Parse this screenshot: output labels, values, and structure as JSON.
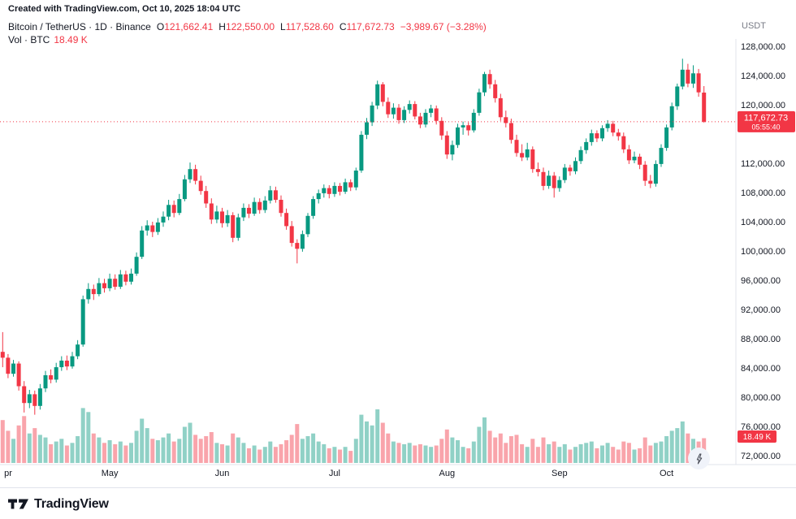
{
  "annotation": "Created with TradingView.com, Oct 10, 2025 18:04 UTC",
  "legend": {
    "title": "Bitcoin / TetherUS · 1D · Binance",
    "open_label": "O",
    "open": "121,662.41",
    "high_label": "H",
    "high": "122,550.00",
    "low_label": "L",
    "low": "117,528.60",
    "close_label": "C",
    "close": "117,672.73",
    "change": "−3,989.67 (−3.28%)",
    "vol_label": "Vol · BTC",
    "vol_value": "18.49 K"
  },
  "price_scale": {
    "currency": "USDT",
    "ticks": [
      {
        "value": 128000,
        "label": "128,000.00"
      },
      {
        "value": 124000,
        "label": "124,000.00"
      },
      {
        "value": 120000,
        "label": "120,000.00"
      },
      {
        "value": 116000,
        "label": "116,000.00"
      },
      {
        "value": 112000,
        "label": "112,000.00"
      },
      {
        "value": 108000,
        "label": "108,000.00"
      },
      {
        "value": 104000,
        "label": "104,000.00"
      },
      {
        "value": 100000,
        "label": "100,000.00"
      },
      {
        "value": 96000,
        "label": "96,000.00"
      },
      {
        "value": 92000,
        "label": "92,000.00"
      },
      {
        "value": 88000,
        "label": "88,000.00"
      },
      {
        "value": 84000,
        "label": "84,000.00"
      },
      {
        "value": 80000,
        "label": "80,000.00"
      },
      {
        "value": 76000,
        "label": "76,000.00"
      },
      {
        "value": 72000,
        "label": "72,000.00"
      }
    ]
  },
  "last_price": {
    "value": 117672.73,
    "label": "117,672.73",
    "countdown": "05:55:40"
  },
  "volume_badge": {
    "label": "18.49 K"
  },
  "colors": {
    "up": "#089981",
    "down": "#f23645",
    "volume_up": "rgba(8,153,129,0.45)",
    "volume_down": "rgba(242,54,69,0.45)",
    "axis_text": "#131722",
    "muted": "#787b86",
    "border": "#e0e3eb",
    "badge": "#f23645"
  },
  "footer": {
    "brand": "TradingView"
  },
  "chart_data": {
    "type": "candlestick",
    "title": "Bitcoin / TetherUS, 1D, Binance",
    "columns": [
      "open",
      "high",
      "low",
      "close",
      "volume_k_btc"
    ],
    "y_axis": {
      "min": 70500,
      "max": 129500,
      "tick_step": 4000,
      "grid": false
    },
    "volume_axis": {
      "unit": "K BTC",
      "last": 18.49
    },
    "x_axis": {
      "months": [
        {
          "label": "pr",
          "index": 0
        },
        {
          "label": "May",
          "index": 20
        },
        {
          "label": "Jun",
          "index": 41
        },
        {
          "label": "Jul",
          "index": 62
        },
        {
          "label": "Aug",
          "index": 83
        },
        {
          "label": "Sep",
          "index": 104
        },
        {
          "label": "Oct",
          "index": 124
        }
      ]
    },
    "candles": [
      [
        86200,
        88900,
        84100,
        85400,
        32
      ],
      [
        85400,
        85900,
        82600,
        83200,
        24
      ],
      [
        83200,
        85100,
        82800,
        84600,
        18
      ],
      [
        84600,
        84900,
        80900,
        81500,
        28
      ],
      [
        81500,
        82200,
        77900,
        79200,
        35
      ],
      [
        79200,
        81000,
        78500,
        80400,
        22
      ],
      [
        80400,
        80900,
        77600,
        78800,
        26
      ],
      [
        78800,
        81800,
        78300,
        81200,
        21
      ],
      [
        81200,
        83600,
        80700,
        83000,
        19
      ],
      [
        83000,
        83800,
        81900,
        82400,
        14
      ],
      [
        82400,
        84700,
        82000,
        84100,
        16
      ],
      [
        84100,
        85600,
        83600,
        85000,
        18
      ],
      [
        85000,
        85700,
        83700,
        84200,
        13
      ],
      [
        84200,
        86200,
        83900,
        85600,
        15
      ],
      [
        85600,
        87800,
        85200,
        87200,
        20
      ],
      [
        87200,
        93900,
        86900,
        93400,
        41
      ],
      [
        93400,
        95600,
        92800,
        94800,
        38
      ],
      [
        94800,
        95400,
        93300,
        94100,
        22
      ],
      [
        94100,
        96300,
        93800,
        95600,
        19
      ],
      [
        95600,
        96200,
        94300,
        94900,
        15
      ],
      [
        94900,
        96900,
        94500,
        96200,
        17
      ],
      [
        96200,
        96800,
        94700,
        95100,
        14
      ],
      [
        95100,
        97400,
        94800,
        96800,
        16
      ],
      [
        96800,
        97300,
        95300,
        95800,
        13
      ],
      [
        95800,
        97600,
        95400,
        96900,
        15
      ],
      [
        96900,
        99800,
        96600,
        99200,
        24
      ],
      [
        99200,
        103400,
        98900,
        102800,
        33
      ],
      [
        102800,
        104200,
        102100,
        103500,
        26
      ],
      [
        103500,
        104000,
        101900,
        102600,
        18
      ],
      [
        102600,
        104500,
        102200,
        103900,
        17
      ],
      [
        103900,
        105400,
        103300,
        104700,
        19
      ],
      [
        104700,
        107000,
        104200,
        106300,
        22
      ],
      [
        106300,
        106900,
        104600,
        105200,
        16
      ],
      [
        105200,
        107800,
        104900,
        107100,
        18
      ],
      [
        107100,
        110400,
        106800,
        109800,
        27
      ],
      [
        109800,
        112100,
        109300,
        111200,
        30
      ],
      [
        111200,
        111800,
        109100,
        109600,
        21
      ],
      [
        109600,
        110300,
        107700,
        108200,
        18
      ],
      [
        108200,
        108900,
        105900,
        106500,
        20
      ],
      [
        106500,
        107200,
        103700,
        104300,
        23
      ],
      [
        104300,
        106200,
        103800,
        105400,
        15
      ],
      [
        105400,
        105900,
        103200,
        103800,
        14
      ],
      [
        103800,
        105600,
        103300,
        104900,
        13
      ],
      [
        104900,
        105300,
        101200,
        101800,
        22
      ],
      [
        101800,
        105100,
        101400,
        104600,
        19
      ],
      [
        104600,
        106500,
        104100,
        105900,
        15
      ],
      [
        105900,
        106400,
        104500,
        105100,
        11
      ],
      [
        105100,
        107300,
        104800,
        106700,
        13
      ],
      [
        106700,
        107200,
        105100,
        105600,
        10
      ],
      [
        105600,
        107500,
        105200,
        106900,
        12
      ],
      [
        106900,
        108900,
        106500,
        108300,
        16
      ],
      [
        108300,
        108800,
        106600,
        107000,
        12
      ],
      [
        107000,
        107600,
        104700,
        105200,
        14
      ],
      [
        105200,
        105800,
        102900,
        103400,
        17
      ],
      [
        103400,
        104100,
        100600,
        101100,
        21
      ],
      [
        101100,
        101600,
        98300,
        100300,
        29
      ],
      [
        100300,
        102800,
        99900,
        102300,
        18
      ],
      [
        102300,
        105200,
        101900,
        104800,
        20
      ],
      [
        104800,
        107500,
        104400,
        107100,
        22
      ],
      [
        107100,
        108400,
        106500,
        107900,
        16
      ],
      [
        107900,
        109100,
        107300,
        108600,
        14
      ],
      [
        108600,
        109000,
        107200,
        107800,
        11
      ],
      [
        107800,
        109400,
        107400,
        108900,
        12
      ],
      [
        108900,
        109300,
        107600,
        108100,
        10
      ],
      [
        108100,
        109900,
        107800,
        109400,
        12
      ],
      [
        109400,
        109800,
        108200,
        108700,
        9
      ],
      [
        108700,
        111400,
        108300,
        111000,
        18
      ],
      [
        111000,
        116400,
        110700,
        115900,
        36
      ],
      [
        115900,
        118200,
        115300,
        117600,
        31
      ],
      [
        117600,
        120400,
        117100,
        119900,
        28
      ],
      [
        119900,
        123300,
        119400,
        122800,
        40
      ],
      [
        122800,
        123100,
        119800,
        120400,
        30
      ],
      [
        120400,
        121000,
        118200,
        118700,
        22
      ],
      [
        118700,
        120200,
        118100,
        119600,
        16
      ],
      [
        119600,
        120100,
        117400,
        117900,
        15
      ],
      [
        117900,
        119800,
        117500,
        119300,
        14
      ],
      [
        119300,
        120600,
        118800,
        120100,
        15
      ],
      [
        120100,
        120500,
        118000,
        118400,
        13
      ],
      [
        118400,
        118900,
        116800,
        117300,
        14
      ],
      [
        117300,
        119400,
        116900,
        118900,
        13
      ],
      [
        118900,
        120000,
        118300,
        119500,
        12
      ],
      [
        119500,
        119900,
        117300,
        117800,
        13
      ],
      [
        117800,
        118300,
        115200,
        115800,
        18
      ],
      [
        115800,
        116400,
        112600,
        113200,
        25
      ],
      [
        113200,
        115100,
        112400,
        114500,
        19
      ],
      [
        114500,
        117400,
        114100,
        116900,
        17
      ],
      [
        116900,
        117700,
        115900,
        117200,
        12
      ],
      [
        117200,
        117600,
        115800,
        116500,
        11
      ],
      [
        116500,
        119400,
        116200,
        118900,
        16
      ],
      [
        118900,
        122200,
        118500,
        121700,
        27
      ],
      [
        121700,
        124500,
        121200,
        124200,
        34
      ],
      [
        124200,
        124800,
        122200,
        122800,
        24
      ],
      [
        122800,
        123400,
        120300,
        120900,
        19
      ],
      [
        120900,
        121500,
        117800,
        118300,
        22
      ],
      [
        118300,
        119200,
        116900,
        117500,
        15
      ],
      [
        117500,
        118100,
        114700,
        115200,
        20
      ],
      [
        115200,
        115900,
        112900,
        113400,
        21
      ],
      [
        113400,
        114600,
        112300,
        112800,
        14
      ],
      [
        112800,
        114800,
        112400,
        113900,
        12
      ],
      [
        113900,
        114300,
        110700,
        111200,
        18
      ],
      [
        111200,
        112100,
        110200,
        110800,
        12
      ],
      [
        110800,
        111400,
        108300,
        108900,
        19
      ],
      [
        108900,
        111000,
        108500,
        110300,
        14
      ],
      [
        110300,
        110800,
        107300,
        108600,
        16
      ],
      [
        108600,
        110200,
        108100,
        109700,
        12
      ],
      [
        109700,
        111900,
        109300,
        111400,
        14
      ],
      [
        111400,
        111800,
        110300,
        110900,
        10
      ],
      [
        110900,
        112800,
        110500,
        112300,
        12
      ],
      [
        112300,
        114300,
        111900,
        113800,
        14
      ],
      [
        113800,
        115400,
        113300,
        114900,
        15
      ],
      [
        114900,
        116600,
        114400,
        116100,
        16
      ],
      [
        116100,
        116500,
        114900,
        115400,
        11
      ],
      [
        115400,
        117200,
        115000,
        116800,
        13
      ],
      [
        116800,
        117900,
        116300,
        117400,
        15
      ],
      [
        117400,
        117800,
        115700,
        116200,
        12
      ],
      [
        116200,
        116700,
        115100,
        115700,
        10
      ],
      [
        115700,
        116200,
        113400,
        113900,
        16
      ],
      [
        113900,
        114500,
        111900,
        112400,
        15
      ],
      [
        112400,
        113600,
        112000,
        112900,
        10
      ],
      [
        112900,
        113300,
        111200,
        111800,
        11
      ],
      [
        111800,
        112300,
        108900,
        109600,
        19
      ],
      [
        109600,
        110400,
        108600,
        109200,
        13
      ],
      [
        109200,
        112400,
        108800,
        111900,
        15
      ],
      [
        111900,
        114600,
        111500,
        114100,
        16
      ],
      [
        114100,
        117300,
        113700,
        116900,
        20
      ],
      [
        116900,
        120300,
        116500,
        119800,
        24
      ],
      [
        119800,
        122900,
        119300,
        122500,
        26
      ],
      [
        122500,
        126300,
        122100,
        124800,
        31
      ],
      [
        124800,
        125600,
        122400,
        122900,
        22
      ],
      [
        122900,
        125400,
        122300,
        124300,
        18
      ],
      [
        124300,
        124900,
        121100,
        121700,
        16
      ],
      [
        121662.41,
        122550,
        117528.6,
        117672.73,
        18.49
      ]
    ]
  }
}
